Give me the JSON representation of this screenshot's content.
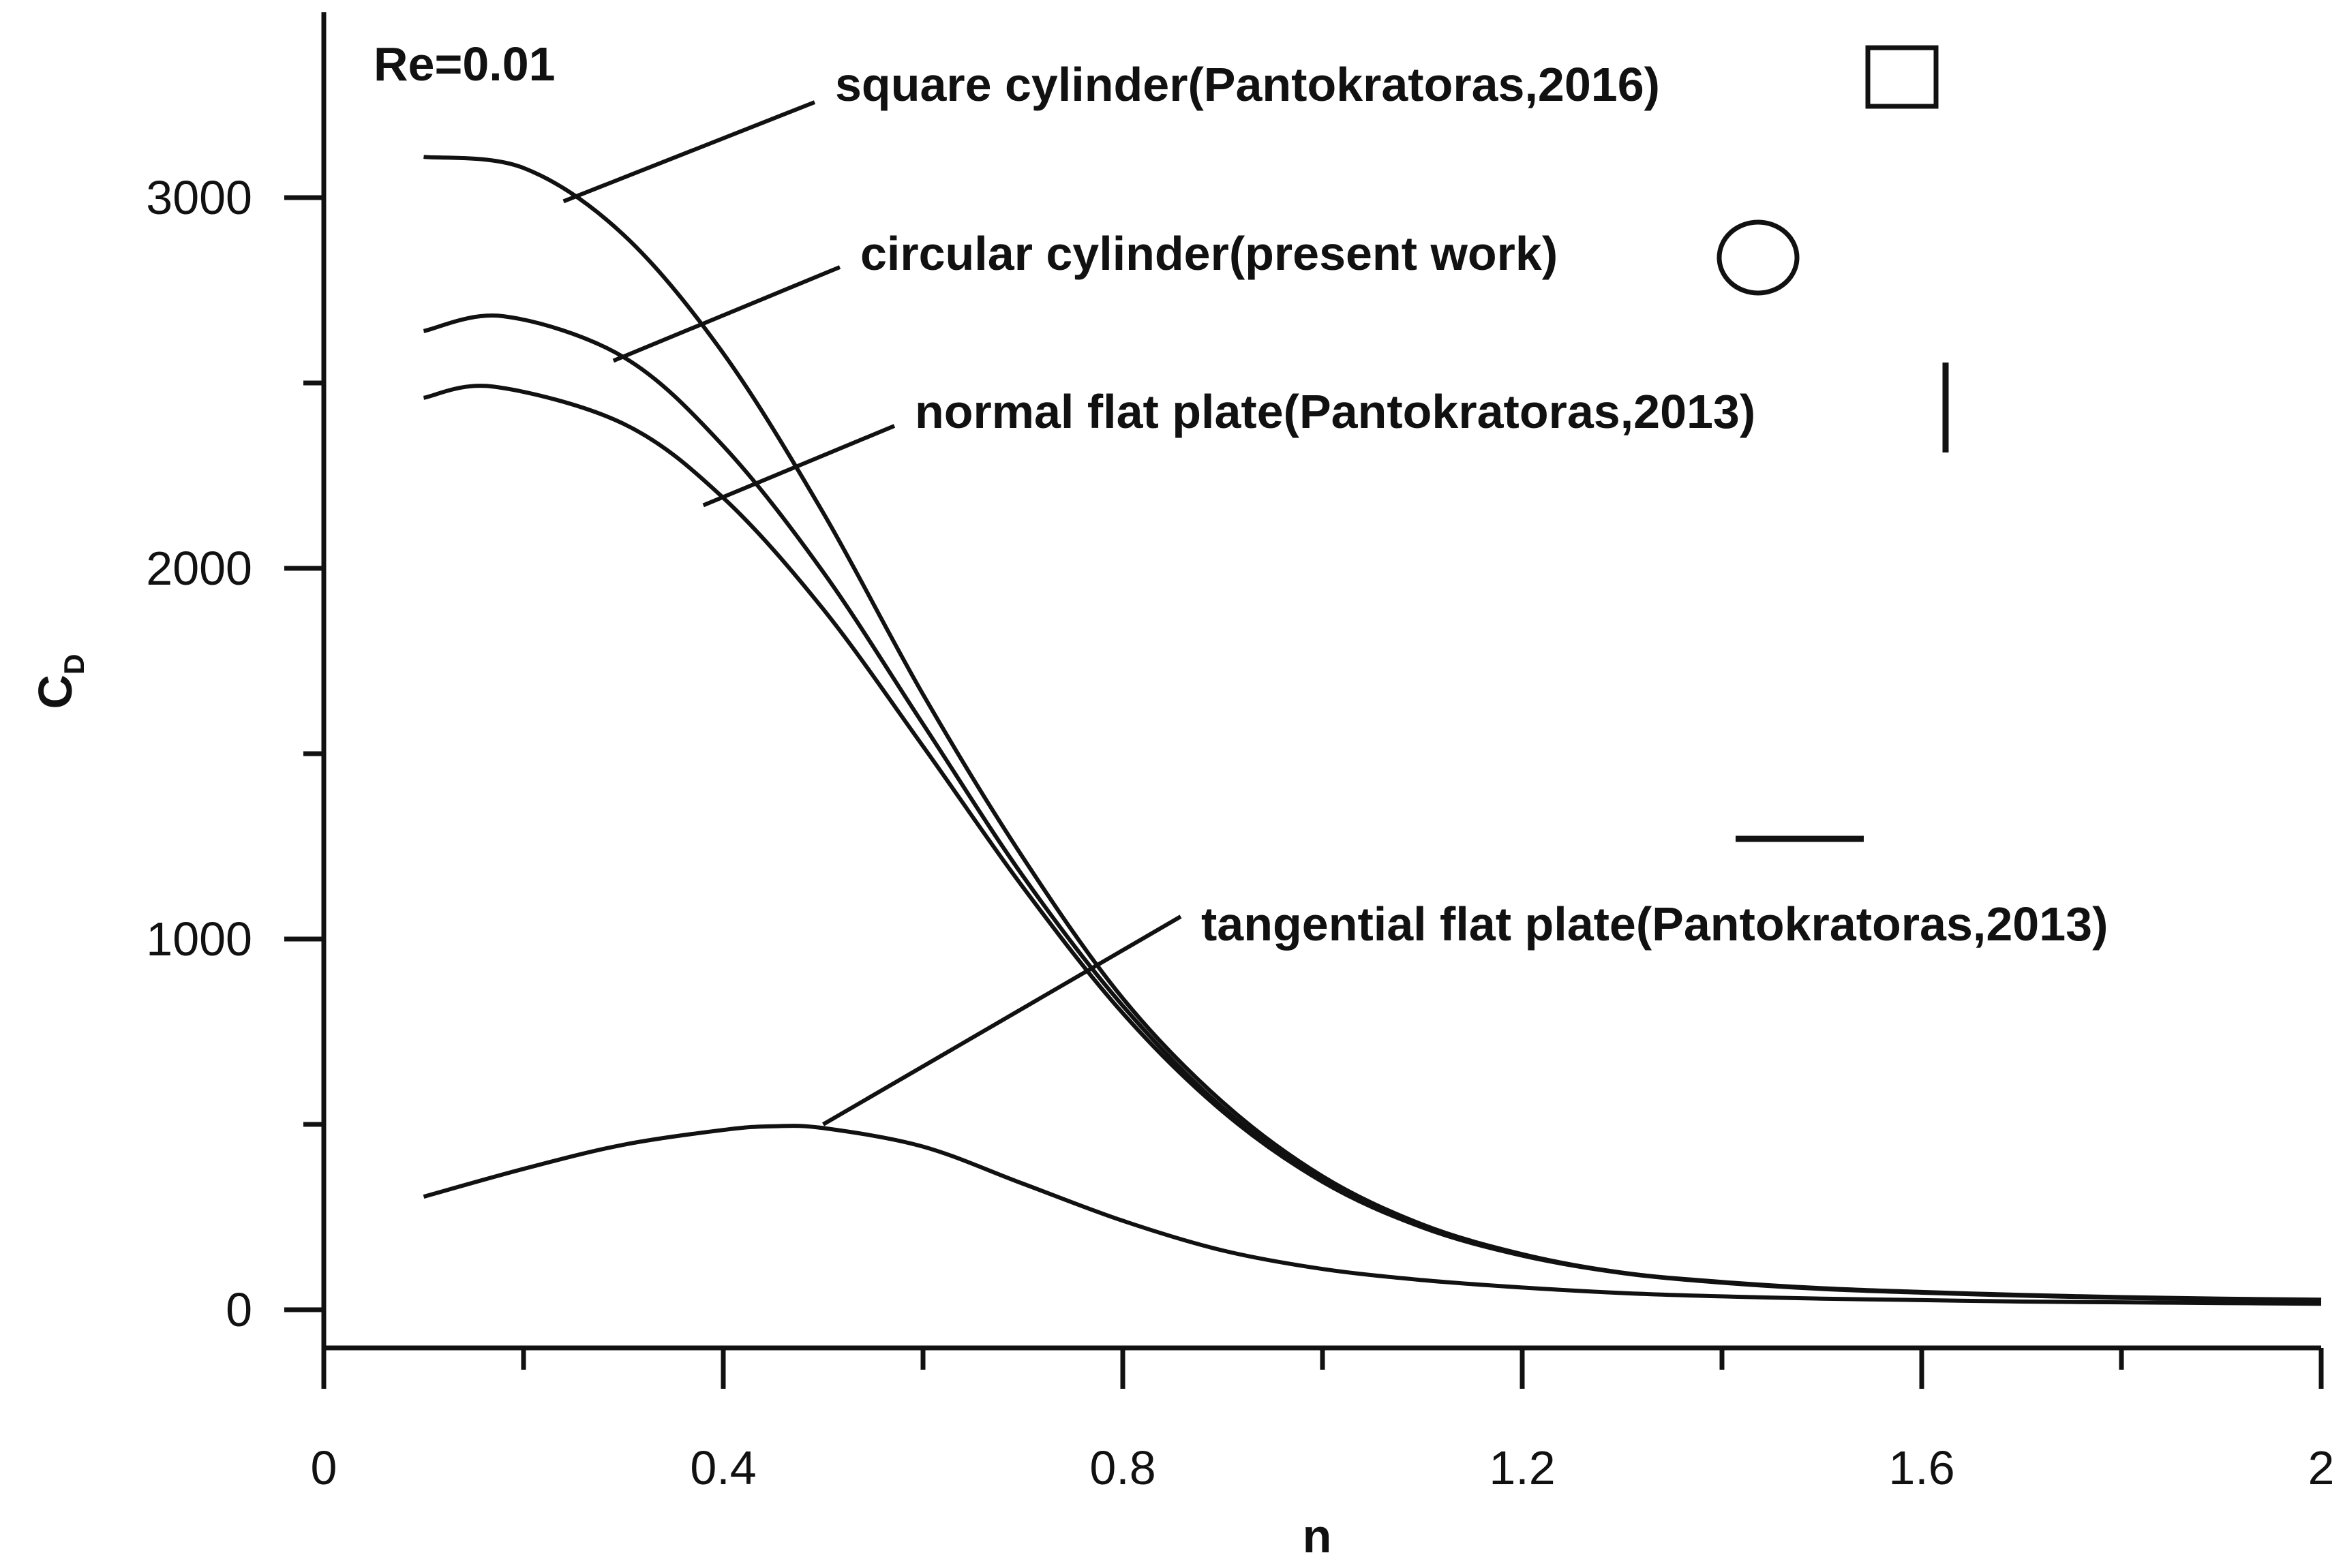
{
  "chart_data": {
    "type": "line",
    "title": "",
    "annotation": "Re=0.01",
    "xlabel": "n",
    "ylabel": "C",
    "ylabel_subscript": "D",
    "xlim": [
      0,
      2
    ],
    "ylim": [
      -100,
      3500
    ],
    "x_ticks": [
      0,
      0.4,
      0.8,
      1.2,
      1.6,
      2
    ],
    "x_tick_labels": [
      "0",
      "0.4",
      "0.8",
      "1.2",
      "1.6",
      "2"
    ],
    "x_minor_ticks": [
      0.2,
      0.6,
      1.0,
      1.4,
      1.8
    ],
    "y_ticks": [
      0,
      1000,
      2000,
      3000
    ],
    "y_tick_labels": [
      "0",
      "1000",
      "2000",
      "3000"
    ],
    "y_minor_ticks": [
      500,
      1500,
      2500
    ],
    "grid": false,
    "legend": "none",
    "series": [
      {
        "name": "square cylinder(Pantokratoras,2016)",
        "symbol": "square",
        "x": [
          0.1,
          0.2,
          0.3,
          0.4,
          0.5,
          0.6,
          0.7,
          0.8,
          0.9,
          1.0,
          1.1,
          1.2,
          1.3,
          1.4,
          1.5,
          1.6,
          1.7,
          1.8,
          1.9,
          2.0
        ],
        "y": [
          3110,
          3080,
          2900,
          2580,
          2150,
          1660,
          1220,
          840,
          560,
          360,
          230,
          150,
          100,
          75,
          58,
          48,
          40,
          34,
          30,
          27
        ]
      },
      {
        "name": "circular cylinder(present work)",
        "symbol": "circle",
        "x": [
          0.1,
          0.18,
          0.3,
          0.4,
          0.5,
          0.6,
          0.7,
          0.8,
          0.9,
          1.0,
          1.1,
          1.2,
          1.3,
          1.4,
          1.5,
          1.6,
          1.7,
          1.8,
          1.9,
          2.0
        ],
        "y": [
          2640,
          2680,
          2570,
          2330,
          1990,
          1580,
          1170,
          820,
          545,
          350,
          225,
          148,
          100,
          74,
          57,
          47,
          39,
          33,
          29,
          26
        ]
      },
      {
        "name": "normal flat plate(Pantokratoras,2013)",
        "symbol": "vertical-line",
        "x": [
          0.1,
          0.17,
          0.3,
          0.4,
          0.5,
          0.6,
          0.7,
          0.8,
          0.9,
          1.0,
          1.1,
          1.2,
          1.3,
          1.4,
          1.5,
          1.6,
          1.7,
          1.8,
          1.9,
          2.0
        ],
        "y": [
          2460,
          2490,
          2390,
          2190,
          1890,
          1520,
          1140,
          800,
          535,
          345,
          222,
          146,
          99,
          73,
          56,
          46,
          38,
          32,
          28,
          25
        ]
      },
      {
        "name": "tangential flat plate(Pantokratoras,2013)",
        "symbol": "horizontal-line",
        "x": [
          0.1,
          0.2,
          0.3,
          0.4,
          0.45,
          0.5,
          0.6,
          0.7,
          0.8,
          0.9,
          1.0,
          1.1,
          1.2,
          1.3,
          1.4,
          1.5,
          1.6,
          1.7,
          1.8,
          1.9,
          2.0
        ],
        "y": [
          305,
          380,
          445,
          485,
          495,
          490,
          440,
          340,
          240,
          160,
          110,
          80,
          60,
          45,
          36,
          30,
          26,
          22,
          20,
          18,
          16
        ]
      }
    ],
    "labels": [
      {
        "text": "square cylinder(Pantokratoras,2016)",
        "series": 0,
        "pointer_at": [
          0.24,
          2990
        ]
      },
      {
        "text": "circular cylinder(present work)",
        "series": 1,
        "pointer_at": [
          0.29,
          2560
        ]
      },
      {
        "text": "normal flat plate(Pantokratoras,2013)",
        "series": 2,
        "pointer_at": [
          0.38,
          2170
        ]
      },
      {
        "text": "tangential flat plate(Pantokratoras,2013)",
        "series": 3,
        "pointer_at": [
          0.5,
          500
        ]
      }
    ]
  }
}
